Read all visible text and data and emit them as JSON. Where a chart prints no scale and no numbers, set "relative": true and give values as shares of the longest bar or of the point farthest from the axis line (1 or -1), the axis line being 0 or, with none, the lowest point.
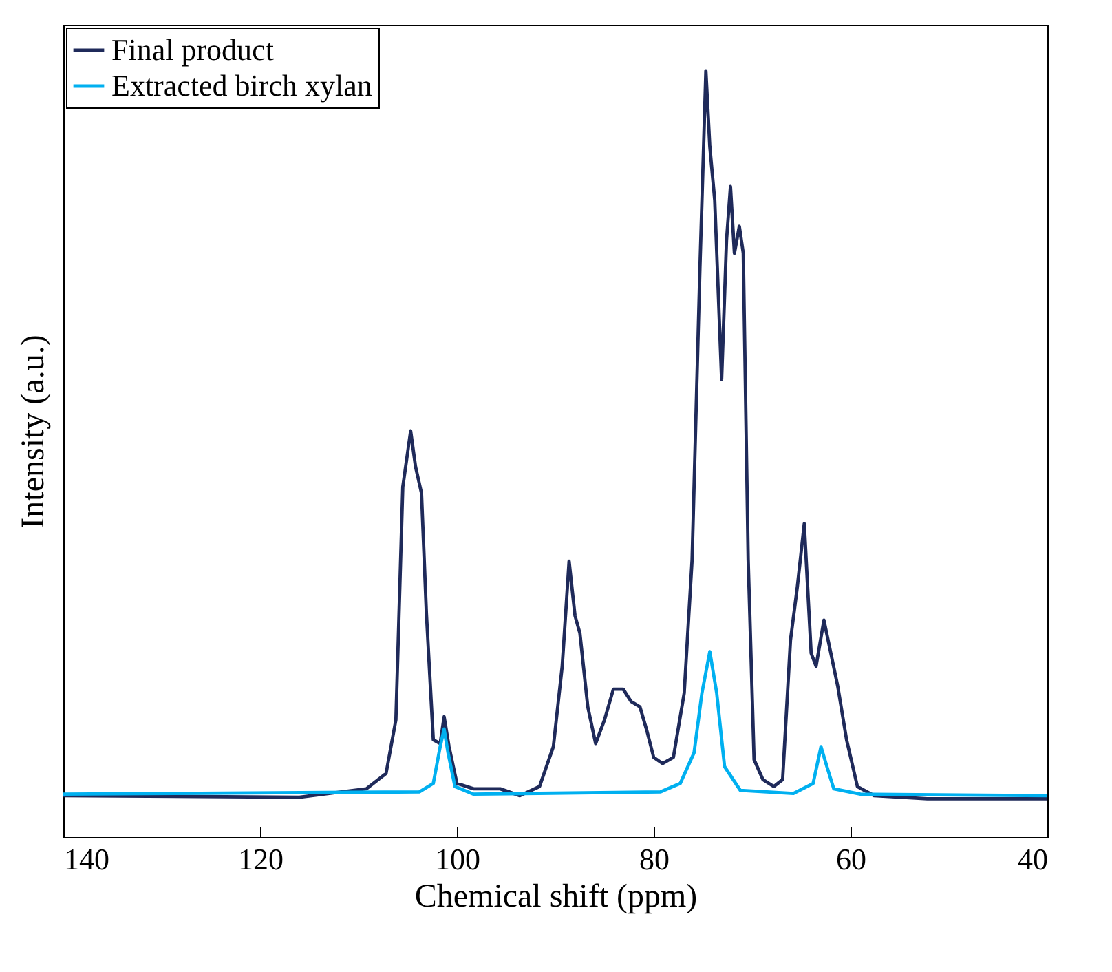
{
  "chart_data": {
    "type": "line",
    "xlabel": "Chemical shift (ppm)",
    "ylabel": "Intensity (a.u.)",
    "relative": true,
    "tick_labels": "x",
    "xlim": [
      140,
      40
    ],
    "xticks": [
      140,
      120,
      100,
      80,
      60,
      40
    ],
    "legend": "top left",
    "grid": false,
    "line_style": "solid",
    "marker": "none",
    "series": [
      {
        "name": "Final product",
        "color": "#1f2a5a",
        "x": [
          140,
          116,
          109.2,
          107.2,
          106.2,
          105.5,
          104.7,
          104.2,
          103.6,
          103.1,
          102.4,
          101.7,
          101.3,
          100.8,
          100.0,
          98.3,
          95.6,
          93.6,
          91.6,
          90.2,
          89.3,
          88.6,
          88.0,
          87.5,
          86.7,
          85.9,
          85.0,
          84.1,
          83.1,
          82.3,
          81.4,
          80.7,
          80.0,
          79.1,
          78.0,
          76.9,
          76.1,
          75.3,
          74.7,
          74.3,
          73.8,
          73.1,
          72.6,
          72.2,
          71.8,
          71.3,
          70.9,
          70.4,
          69.8,
          68.9,
          67.8,
          66.9,
          66.1,
          65.4,
          64.7,
          64.0,
          63.5,
          62.7,
          62.0,
          61.3,
          60.4,
          59.3,
          57.6,
          52.2,
          40
        ],
        "values": [
          0.054,
          0.052,
          0.063,
          0.083,
          0.153,
          0.457,
          0.53,
          0.483,
          0.449,
          0.292,
          0.127,
          0.122,
          0.157,
          0.118,
          0.07,
          0.063,
          0.063,
          0.054,
          0.066,
          0.118,
          0.223,
          0.36,
          0.289,
          0.266,
          0.17,
          0.122,
          0.153,
          0.193,
          0.193,
          0.177,
          0.17,
          0.139,
          0.104,
          0.096,
          0.104,
          0.188,
          0.362,
          0.744,
          1,
          0.901,
          0.831,
          0.597,
          0.779,
          0.849,
          0.762,
          0.797,
          0.762,
          0.362,
          0.101,
          0.075,
          0.066,
          0.075,
          0.257,
          0.327,
          0.409,
          0.24,
          0.223,
          0.283,
          0.24,
          0.197,
          0.127,
          0.066,
          0.054,
          0.05,
          0.05
        ]
      },
      {
        "name": "Extracted birch xylan",
        "color": "#00b0f0",
        "x": [
          140,
          103.8,
          102.4,
          101.7,
          101.3,
          100.9,
          100.2,
          98.3,
          79.3,
          77.3,
          75.9,
          75.1,
          74.3,
          73.6,
          72.8,
          71.2,
          65.8,
          63.8,
          63.0,
          62.4,
          61.7,
          59.0,
          40
        ],
        "values": [
          0.056,
          0.059,
          0.07,
          0.118,
          0.141,
          0.11,
          0.066,
          0.056,
          0.059,
          0.07,
          0.11,
          0.188,
          0.242,
          0.188,
          0.092,
          0.061,
          0.057,
          0.07,
          0.118,
          0.092,
          0.063,
          0.056,
          0.054
        ]
      }
    ]
  }
}
